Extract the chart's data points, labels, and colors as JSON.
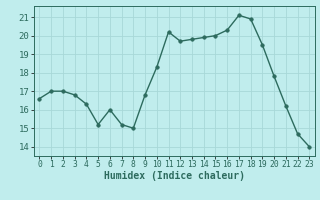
{
  "x": [
    0,
    1,
    2,
    3,
    4,
    5,
    6,
    7,
    8,
    9,
    10,
    11,
    12,
    13,
    14,
    15,
    16,
    17,
    18,
    19,
    20,
    21,
    22,
    23
  ],
  "y": [
    16.6,
    17.0,
    17.0,
    16.8,
    16.3,
    15.2,
    16.0,
    15.2,
    15.0,
    16.8,
    18.3,
    20.2,
    19.7,
    19.8,
    19.9,
    20.0,
    20.3,
    21.1,
    20.9,
    19.5,
    17.8,
    16.2,
    14.7,
    14.0
  ],
  "xlabel": "Humidex (Indice chaleur)",
  "xlim": [
    -0.5,
    23.5
  ],
  "ylim": [
    13.5,
    21.6
  ],
  "yticks": [
    14,
    15,
    16,
    17,
    18,
    19,
    20,
    21
  ],
  "xticks": [
    0,
    1,
    2,
    3,
    4,
    5,
    6,
    7,
    8,
    9,
    10,
    11,
    12,
    13,
    14,
    15,
    16,
    17,
    18,
    19,
    20,
    21,
    22,
    23
  ],
  "line_color": "#2d6b5e",
  "marker_color": "#2d6b5e",
  "bg_color": "#c0eded",
  "grid_color": "#a8d8d8",
  "tick_label_color": "#2d6b5e",
  "xlabel_color": "#2d6b5e",
  "xlabel_fontsize": 7.0,
  "ytick_fontsize": 6.5,
  "xtick_fontsize": 5.8
}
